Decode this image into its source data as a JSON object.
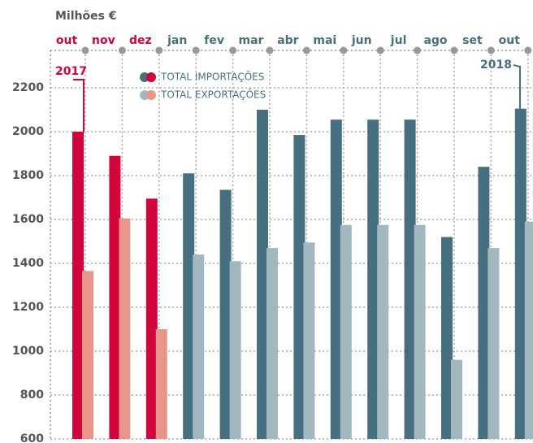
{
  "chart_data": {
    "type": "bar",
    "y_axis_label": "Milhões €",
    "categories": [
      "out",
      "nov",
      "dez",
      "jan",
      "fev",
      "mar",
      "abr",
      "mai",
      "jun",
      "jul",
      "ago",
      "set",
      "out"
    ],
    "category_colors": [
      "#d0053b",
      "#d0053b",
      "#d0053b",
      "#46707f",
      "#46707f",
      "#46707f",
      "#46707f",
      "#46707f",
      "#46707f",
      "#46707f",
      "#46707f",
      "#46707f",
      "#46707f"
    ],
    "series": [
      {
        "name": "TOTAL IMPORTAÇÕES",
        "colors": [
          "#d0053b",
          "#d0053b",
          "#d0053b",
          "#46707f",
          "#46707f",
          "#46707f",
          "#46707f",
          "#46707f",
          "#46707f",
          "#46707f",
          "#46707f",
          "#46707f",
          "#46707f"
        ],
        "values": [
          2000,
          1890,
          1695,
          1810,
          1735,
          2100,
          1985,
          2055,
          2055,
          2055,
          1520,
          1840,
          2105
        ]
      },
      {
        "name": "TOTAL EXPORTAÇÕES",
        "colors": [
          "#e8958a",
          "#e8958a",
          "#e8958a",
          "#a3b7bf",
          "#a3b7bf",
          "#a3b7bf",
          "#a3b7bf",
          "#a3b7bf",
          "#a3b7bf",
          "#a3b7bf",
          "#a3b7bf",
          "#a3b7bf",
          "#a3b7bf"
        ],
        "values": [
          1365,
          1605,
          1100,
          1440,
          1410,
          1470,
          1495,
          1575,
          1575,
          1575,
          960,
          1470,
          1590
        ]
      }
    ],
    "ylim": [
      600,
      2200
    ],
    "yticks": [
      600,
      800,
      1000,
      1200,
      1400,
      1600,
      1800,
      2000,
      2200
    ],
    "grid": true,
    "annotations": [
      {
        "text": "2017",
        "color": "#d0053b"
      },
      {
        "text": "2018",
        "color": "#46707f"
      }
    ]
  }
}
